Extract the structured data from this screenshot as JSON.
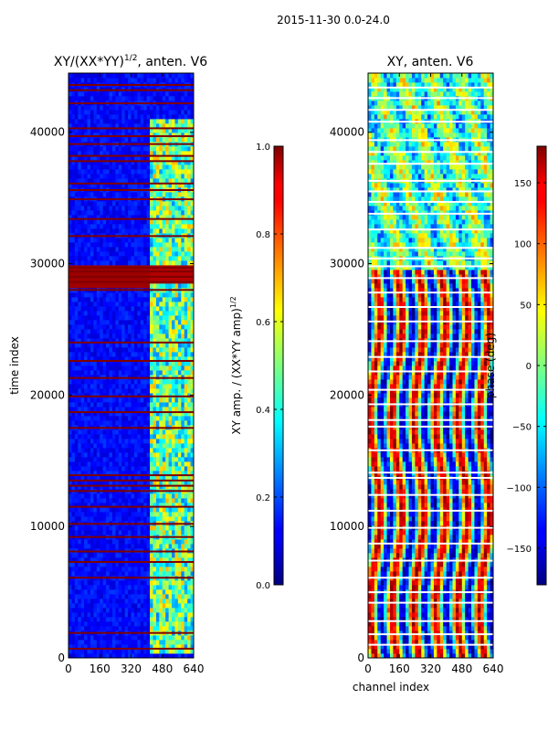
{
  "suptitle": "2015-11-30 0.0-24.0",
  "chart_data": [
    {
      "type": "heatmap",
      "title_main": "XY/(XX*YY)",
      "title_sup": "1/2",
      "title_tail": ", anten. V6",
      "xlabel": "",
      "ylabel": "time index",
      "xlim": [
        0,
        640
      ],
      "ylim": [
        0,
        44500
      ],
      "xticks": [
        0,
        160,
        320,
        480,
        640
      ],
      "yticks": [
        0,
        10000,
        20000,
        30000,
        40000
      ],
      "bright_channel_range": [
        410,
        640
      ],
      "flagged_rows": [
        700,
        1900,
        6100,
        7300,
        8100,
        9200,
        10200,
        11500,
        12700,
        13100,
        13500,
        13900,
        17500,
        18700,
        19900,
        21300,
        22600,
        24000,
        28000,
        28600,
        29000,
        29400,
        29700,
        32100,
        33400,
        34900,
        35600,
        36100,
        37800,
        38200,
        39100,
        39700,
        40300,
        42200,
        43200,
        43600
      ],
      "colorbar": {
        "label": "XY amp. / (XX*YY amp)",
        "label_sup": "1/2",
        "range": [
          0.0,
          1.0
        ],
        "ticks": [
          "0.0",
          "0.2",
          "0.4",
          "0.6",
          "0.8",
          "1.0"
        ],
        "tick_values": [
          0.0,
          0.2,
          0.4,
          0.6,
          0.8,
          1.0
        ]
      }
    },
    {
      "type": "heatmap",
      "title": "XY, anten. V6",
      "xlabel": "channel index",
      "ylabel": "",
      "xlim": [
        0,
        640
      ],
      "ylim": [
        0,
        44500
      ],
      "xticks": [
        0,
        160,
        320,
        480,
        640
      ],
      "yticks": [
        0,
        10000,
        20000,
        30000,
        40000
      ],
      "flagged_rows": [
        1000,
        1800,
        2800,
        4200,
        5000,
        6100,
        7400,
        8700,
        9900,
        11200,
        12400,
        13700,
        14100,
        15800,
        17600,
        18100,
        19300,
        20400,
        21800,
        22900,
        24100,
        25600,
        26700,
        27800,
        28900,
        29800,
        30400,
        31200,
        32600,
        33800,
        34700,
        35500,
        36300,
        37600,
        38500,
        39400,
        40800,
        41700,
        42600,
        43400
      ],
      "colorbar": {
        "label": "phase (deg)",
        "range": [
          -180,
          180
        ],
        "ticks": [
          "−150",
          "−100",
          "−50",
          "0",
          "50",
          "100",
          "150"
        ],
        "tick_values": [
          -150,
          -100,
          -50,
          0,
          50,
          100,
          150
        ]
      }
    }
  ]
}
